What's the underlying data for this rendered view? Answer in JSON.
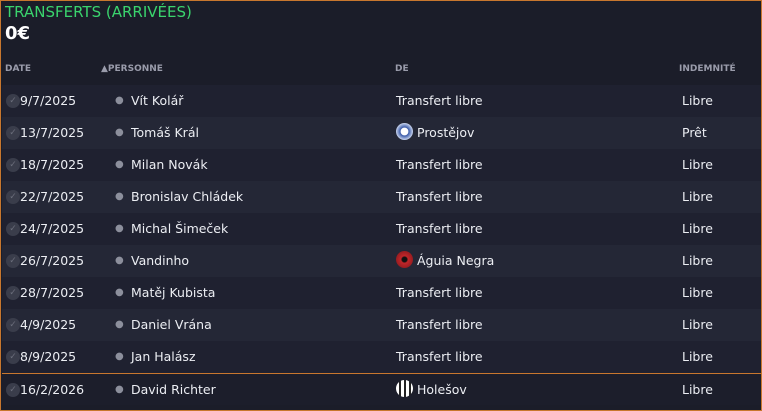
{
  "title": "TRANSFERTS (ARRIVÉES)",
  "total": "0€",
  "columns": {
    "date": "DATE",
    "person": "PERSONNE",
    "from": "DE",
    "fee": "INDEMNITÉ"
  },
  "rows": [
    {
      "date": "9/7/2025",
      "name": "Vít Kolář",
      "from": "Transfert libre",
      "fee": "Libre"
    },
    {
      "date": "13/7/2025",
      "name": "Tomáš Král",
      "from": "Prostějov",
      "fee": "Prêt",
      "club_icon": "prostejov-crest"
    },
    {
      "date": "18/7/2025",
      "name": "Milan Novák",
      "from": "Transfert libre",
      "fee": "Libre"
    },
    {
      "date": "22/7/2025",
      "name": "Bronislav Chládek",
      "from": "Transfert libre",
      "fee": "Libre"
    },
    {
      "date": "24/7/2025",
      "name": "Michal Šimeček",
      "from": "Transfert libre",
      "fee": "Libre"
    },
    {
      "date": "26/7/2025",
      "name": "Vandinho",
      "from": "Águia Negra",
      "fee": "Libre",
      "club_icon": "aguia-negra-crest"
    },
    {
      "date": "28/7/2025",
      "name": "Matěj Kubista",
      "from": "Transfert libre",
      "fee": "Libre"
    },
    {
      "date": "4/9/2025",
      "name": "Daniel Vrána",
      "from": "Transfert libre",
      "fee": "Libre"
    },
    {
      "date": "8/9/2025",
      "name": "Jan Halász",
      "from": "Transfert libre",
      "fee": "Libre"
    },
    {
      "date": "16/2/2026",
      "name": "David Richter",
      "from": "Holešov",
      "fee": "Libre",
      "club_icon": "holesov-crest"
    }
  ],
  "colors": {
    "title": "#3ad46d",
    "border": "#c8772e"
  }
}
